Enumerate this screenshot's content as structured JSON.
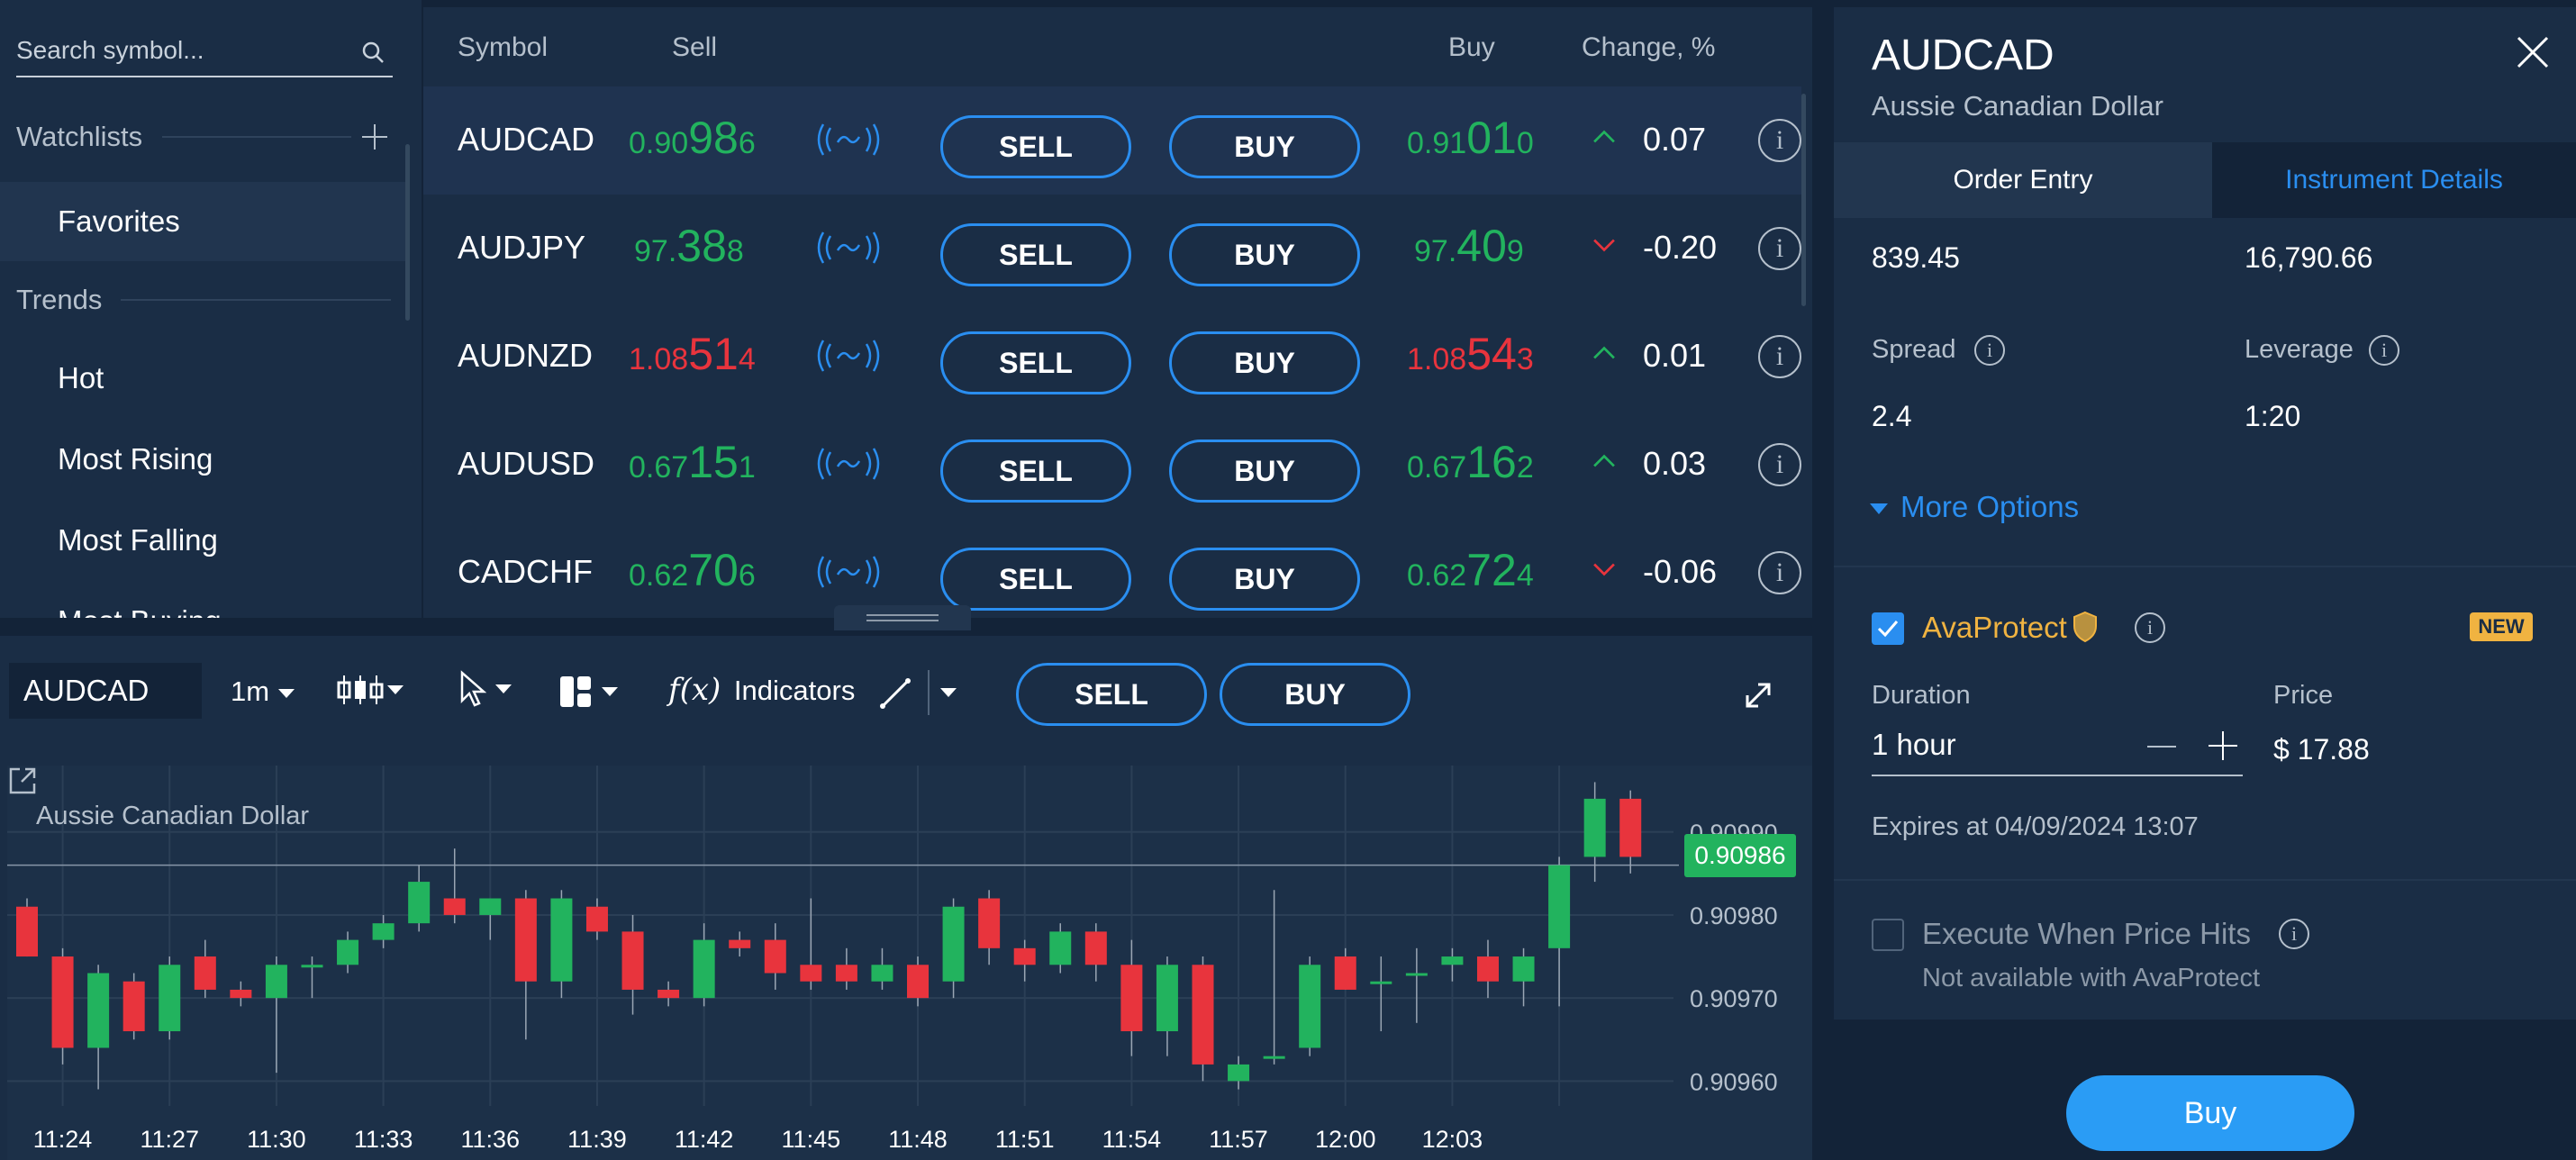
{
  "sidebar": {
    "search_placeholder": "Search symbol...",
    "watchlists_label": "Watchlists",
    "watchlist_items": [
      "Favorites"
    ],
    "trends_label": "Trends",
    "trend_items": [
      "Hot",
      "Most Rising",
      "Most Falling",
      "Most Buying"
    ]
  },
  "table": {
    "headers": {
      "symbol": "Symbol",
      "sell": "Sell",
      "buy": "Buy",
      "change": "Change, %"
    },
    "sell_label": "SELL",
    "buy_label": "BUY",
    "rows": [
      {
        "symbol": "AUDCAD",
        "sell": {
          "pre": "0.90",
          "big": "98",
          "post": "6"
        },
        "buy": {
          "pre": "0.91",
          "big": "01",
          "post": "0"
        },
        "price_color": "green",
        "direction": "up",
        "change": "0.07"
      },
      {
        "symbol": "AUDJPY",
        "sell": {
          "pre": "97.",
          "big": "38",
          "post": "8"
        },
        "buy": {
          "pre": "97.",
          "big": "40",
          "post": "9"
        },
        "price_color": "green",
        "direction": "down",
        "change": "-0.20"
      },
      {
        "symbol": "AUDNZD",
        "sell": {
          "pre": "1.08",
          "big": "51",
          "post": "4"
        },
        "buy": {
          "pre": "1.08",
          "big": "54",
          "post": "3"
        },
        "price_color": "red",
        "direction": "up",
        "change": "0.01"
      },
      {
        "symbol": "AUDUSD",
        "sell": {
          "pre": "0.67",
          "big": "15",
          "post": "1"
        },
        "buy": {
          "pre": "0.67",
          "big": "16",
          "post": "2"
        },
        "price_color": "green",
        "direction": "up",
        "change": "0.03"
      },
      {
        "symbol": "CADCHF",
        "sell": {
          "pre": "0.62",
          "big": "70",
          "post": "6"
        },
        "buy": {
          "pre": "0.62",
          "big": "72",
          "post": "4"
        },
        "price_color": "green",
        "direction": "down",
        "change": "-0.06"
      }
    ]
  },
  "chart_toolbar": {
    "symbol": "AUDCAD",
    "timeframe": "1m",
    "indicators_label": "Indicators",
    "sell_label": "SELL",
    "buy_label": "BUY"
  },
  "chart_data": {
    "type": "candlestick",
    "title": "Aussie Canadian Dollar",
    "x_ticks": [
      "11:24",
      "11:27",
      "11:30",
      "11:33",
      "11:36",
      "11:39",
      "11:42",
      "11:45",
      "11:48",
      "11:51",
      "11:54",
      "11:57",
      "12:00",
      "12:03"
    ],
    "y_ticks": [
      "0.90990",
      "0.90980",
      "0.90970",
      "0.90960"
    ],
    "ylim": [
      0.90957,
      0.90998
    ],
    "current_price": "0.90986",
    "candles": [
      {
        "t": 0,
        "o": 0.90981,
        "h": 0.90982,
        "l": 0.90975,
        "c": 0.90975
      },
      {
        "t": 1,
        "o": 0.90975,
        "h": 0.90976,
        "l": 0.90962,
        "c": 0.90964
      },
      {
        "t": 2,
        "o": 0.90964,
        "h": 0.90974,
        "l": 0.90959,
        "c": 0.90973
      },
      {
        "t": 3,
        "o": 0.90972,
        "h": 0.90973,
        "l": 0.90965,
        "c": 0.90966
      },
      {
        "t": 4,
        "o": 0.90966,
        "h": 0.90975,
        "l": 0.90965,
        "c": 0.90974
      },
      {
        "t": 5,
        "o": 0.90975,
        "h": 0.90977,
        "l": 0.9097,
        "c": 0.90971
      },
      {
        "t": 6,
        "o": 0.90971,
        "h": 0.90972,
        "l": 0.90969,
        "c": 0.9097
      },
      {
        "t": 7,
        "o": 0.9097,
        "h": 0.90975,
        "l": 0.90961,
        "c": 0.90974
      },
      {
        "t": 8,
        "o": 0.90974,
        "h": 0.90975,
        "l": 0.9097,
        "c": 0.90974
      },
      {
        "t": 9,
        "o": 0.90974,
        "h": 0.90978,
        "l": 0.90973,
        "c": 0.90977
      },
      {
        "t": 10,
        "o": 0.90977,
        "h": 0.9098,
        "l": 0.90976,
        "c": 0.90979
      },
      {
        "t": 11,
        "o": 0.90979,
        "h": 0.90986,
        "l": 0.90978,
        "c": 0.90984
      },
      {
        "t": 12,
        "o": 0.90982,
        "h": 0.90988,
        "l": 0.90979,
        "c": 0.9098
      },
      {
        "t": 13,
        "o": 0.9098,
        "h": 0.90982,
        "l": 0.90977,
        "c": 0.90982
      },
      {
        "t": 14,
        "o": 0.90982,
        "h": 0.90983,
        "l": 0.90965,
        "c": 0.90972
      },
      {
        "t": 15,
        "o": 0.90972,
        "h": 0.90983,
        "l": 0.9097,
        "c": 0.90982
      },
      {
        "t": 16,
        "o": 0.90981,
        "h": 0.90982,
        "l": 0.90977,
        "c": 0.90978
      },
      {
        "t": 17,
        "o": 0.90978,
        "h": 0.9098,
        "l": 0.90968,
        "c": 0.90971
      },
      {
        "t": 18,
        "o": 0.90971,
        "h": 0.90972,
        "l": 0.90969,
        "c": 0.9097
      },
      {
        "t": 19,
        "o": 0.9097,
        "h": 0.90979,
        "l": 0.90969,
        "c": 0.90977
      },
      {
        "t": 20,
        "o": 0.90977,
        "h": 0.90978,
        "l": 0.90975,
        "c": 0.90976
      },
      {
        "t": 21,
        "o": 0.90977,
        "h": 0.90979,
        "l": 0.90971,
        "c": 0.90973
      },
      {
        "t": 22,
        "o": 0.90974,
        "h": 0.90982,
        "l": 0.90971,
        "c": 0.90972
      },
      {
        "t": 23,
        "o": 0.90974,
        "h": 0.90976,
        "l": 0.90971,
        "c": 0.90972
      },
      {
        "t": 24,
        "o": 0.90972,
        "h": 0.90976,
        "l": 0.90971,
        "c": 0.90974
      },
      {
        "t": 25,
        "o": 0.90974,
        "h": 0.90975,
        "l": 0.90969,
        "c": 0.9097
      },
      {
        "t": 26,
        "o": 0.90972,
        "h": 0.90982,
        "l": 0.9097,
        "c": 0.90981
      },
      {
        "t": 27,
        "o": 0.90982,
        "h": 0.90983,
        "l": 0.90974,
        "c": 0.90976
      },
      {
        "t": 28,
        "o": 0.90976,
        "h": 0.90977,
        "l": 0.90972,
        "c": 0.90974
      },
      {
        "t": 29,
        "o": 0.90974,
        "h": 0.90979,
        "l": 0.90973,
        "c": 0.90978
      },
      {
        "t": 30,
        "o": 0.90978,
        "h": 0.90979,
        "l": 0.90972,
        "c": 0.90974
      },
      {
        "t": 31,
        "o": 0.90974,
        "h": 0.90977,
        "l": 0.90963,
        "c": 0.90966
      },
      {
        "t": 32,
        "o": 0.90966,
        "h": 0.90975,
        "l": 0.90963,
        "c": 0.90974
      },
      {
        "t": 33,
        "o": 0.90974,
        "h": 0.90975,
        "l": 0.9096,
        "c": 0.90962
      },
      {
        "t": 34,
        "o": 0.9096,
        "h": 0.90963,
        "l": 0.90959,
        "c": 0.90962
      },
      {
        "t": 35,
        "o": 0.90963,
        "h": 0.90983,
        "l": 0.90962,
        "c": 0.90963
      },
      {
        "t": 36,
        "o": 0.90964,
        "h": 0.90975,
        "l": 0.90963,
        "c": 0.90974
      },
      {
        "t": 37,
        "o": 0.90975,
        "h": 0.90976,
        "l": 0.90971,
        "c": 0.90971
      },
      {
        "t": 38,
        "o": 0.90972,
        "h": 0.90975,
        "l": 0.90966,
        "c": 0.90972
      },
      {
        "t": 39,
        "o": 0.90973,
        "h": 0.90976,
        "l": 0.90967,
        "c": 0.90973
      },
      {
        "t": 40,
        "o": 0.90974,
        "h": 0.90976,
        "l": 0.90972,
        "c": 0.90975
      },
      {
        "t": 41,
        "o": 0.90975,
        "h": 0.90977,
        "l": 0.9097,
        "c": 0.90972
      },
      {
        "t": 42,
        "o": 0.90972,
        "h": 0.90976,
        "l": 0.90969,
        "c": 0.90975
      },
      {
        "t": 43,
        "o": 0.90976,
        "h": 0.90987,
        "l": 0.90969,
        "c": 0.90986
      },
      {
        "t": 44,
        "o": 0.90987,
        "h": 0.90996,
        "l": 0.90984,
        "c": 0.90994
      },
      {
        "t": 45,
        "o": 0.90994,
        "h": 0.90995,
        "l": 0.90985,
        "c": 0.90987
      }
    ]
  },
  "order_panel": {
    "title": "AUDCAD",
    "subtitle": "Aussie Canadian Dollar",
    "tabs": [
      "Order Entry",
      "Instrument Details"
    ],
    "value_left": "839.45",
    "value_right": "16,790.66",
    "spread_label": "Spread",
    "spread_value": "2.4",
    "leverage_label": "Leverage",
    "leverage_value": "1:20",
    "more_options": "More Options",
    "avaprotect_label": "AvaProtect",
    "new_badge": "NEW",
    "duration_label": "Duration",
    "duration_value": "1 hour",
    "price_label": "Price",
    "price_value": "$ 17.88",
    "expires_text": "Expires at 04/09/2024 13:07",
    "execute_label": "Execute When Price Hits",
    "execute_note": "Not available with AvaProtect",
    "buy_button": "Buy"
  },
  "colors": {
    "green": "#22b35e",
    "red": "#e8343d",
    "accent": "#2a8ef0",
    "gold": "#f0b341"
  }
}
